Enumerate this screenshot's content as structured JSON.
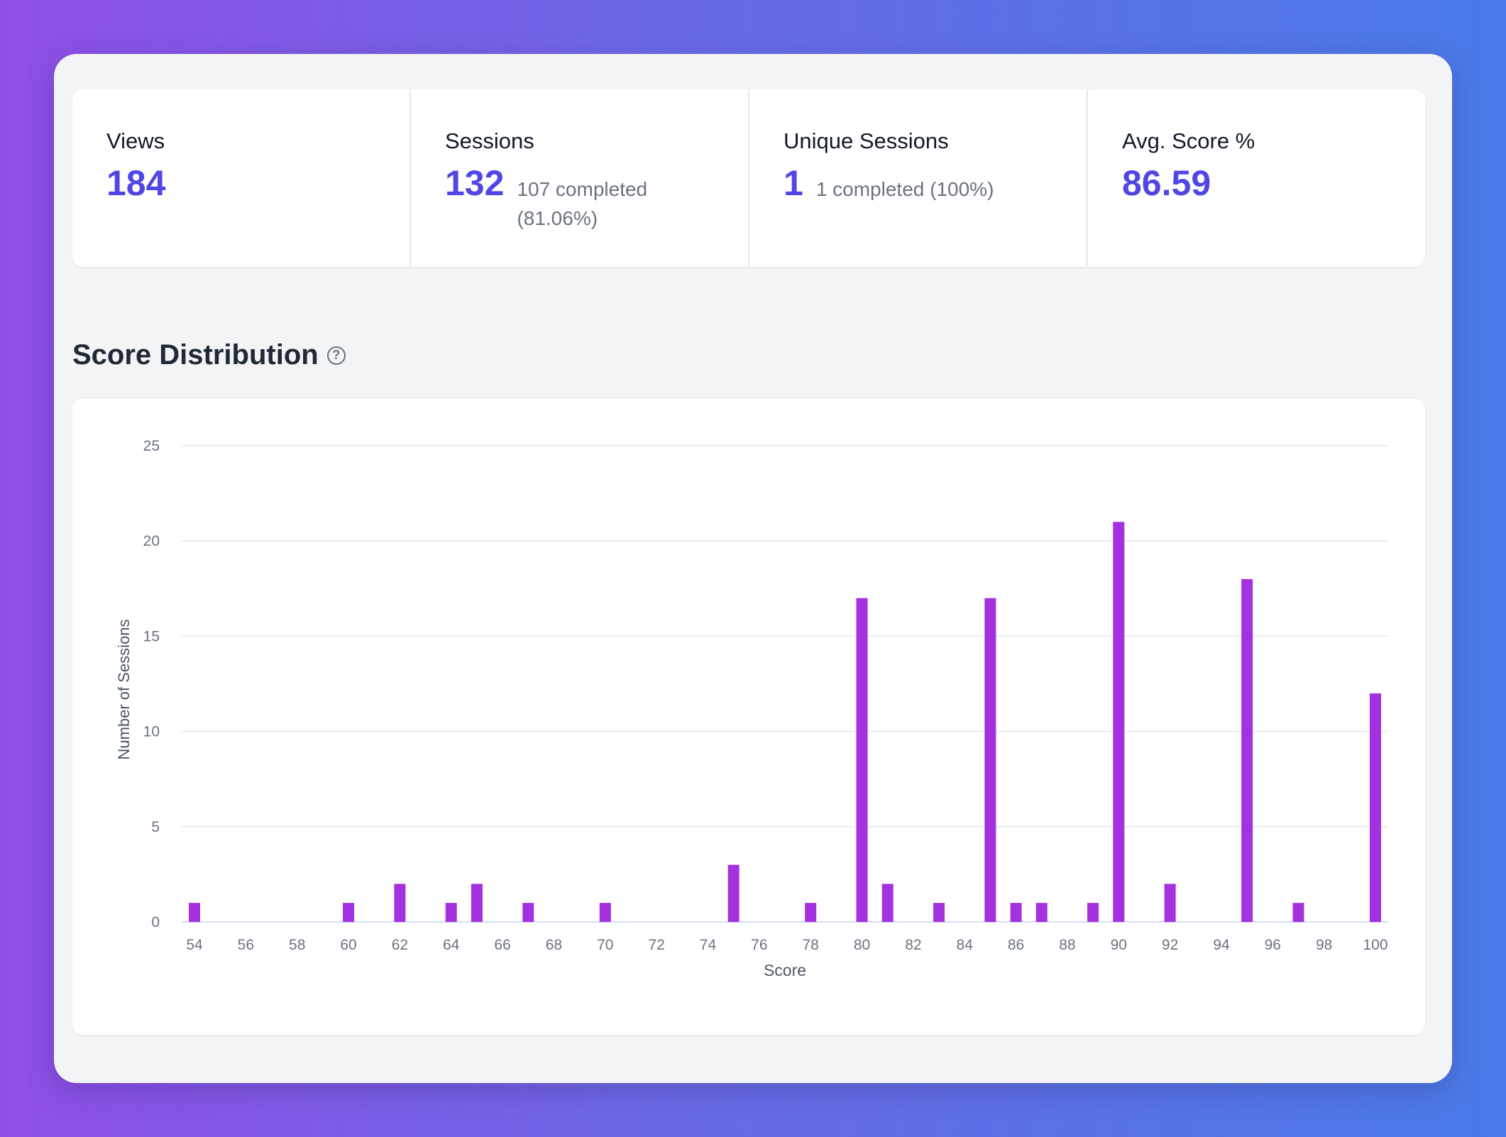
{
  "stats": [
    {
      "label": "Views",
      "value": "184",
      "sub": ""
    },
    {
      "label": "Sessions",
      "value": "132",
      "sub": "107 completed (81.06%)"
    },
    {
      "label": "Unique Sessions",
      "value": "1",
      "sub": "1 completed (100%)"
    },
    {
      "label": "Avg. Score %",
      "value": "86.59",
      "sub": ""
    }
  ],
  "section": {
    "title": "Score Distribution",
    "help_icon": "question-circle-icon"
  },
  "colors": {
    "accent": "#4f46e5",
    "bar": "#a431e0",
    "gradient_start": "#8f4fe6",
    "gradient_end": "#4a7be8"
  },
  "chart_data": {
    "type": "bar",
    "xlabel": "Score",
    "ylabel": "Number of Sessions",
    "xlim": [
      54,
      100
    ],
    "ylim": [
      0,
      25
    ],
    "x_ticks": [
      54,
      56,
      58,
      60,
      62,
      64,
      66,
      68,
      70,
      72,
      74,
      76,
      78,
      80,
      82,
      84,
      86,
      88,
      90,
      92,
      94,
      96,
      98,
      100
    ],
    "y_ticks": [
      0,
      5,
      10,
      15,
      20,
      25
    ],
    "grid": true,
    "x": [
      54,
      60,
      62,
      64,
      65,
      67,
      70,
      75,
      78,
      80,
      81,
      83,
      85,
      86,
      87,
      89,
      90,
      92,
      95,
      97,
      100
    ],
    "values": [
      1,
      1,
      2,
      1,
      2,
      1,
      1,
      3,
      1,
      17,
      2,
      1,
      17,
      1,
      1,
      1,
      21,
      2,
      18,
      1,
      12
    ]
  }
}
